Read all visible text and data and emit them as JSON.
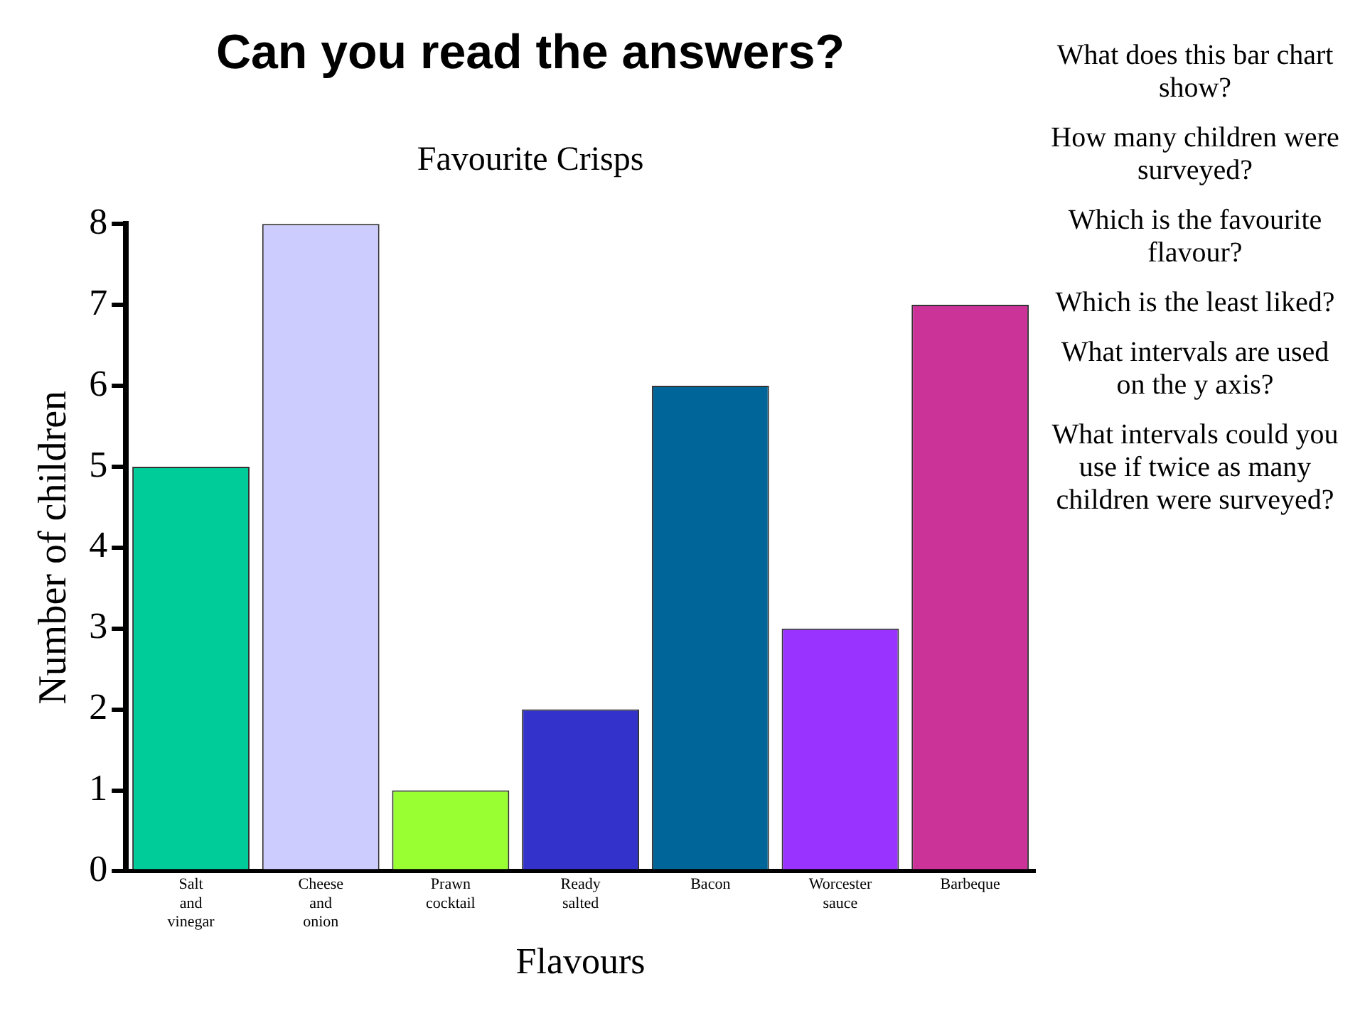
{
  "chart_data": {
    "type": "bar",
    "title": "Can you read the answers?",
    "subtitle": "Favourite Crisps",
    "xlabel": "Flavours",
    "ylabel": "Number of children",
    "categories": [
      "Salt and vinegar",
      "Cheese and onion",
      "Prawn cocktail",
      "Ready salted",
      "Bacon",
      "Worcester sauce",
      "Barbeque"
    ],
    "values": [
      5,
      8,
      1,
      2,
      6,
      3,
      7
    ],
    "colors": [
      "#00cc99",
      "#ccccff",
      "#99ff33",
      "#3333cc",
      "#006699",
      "#9933ff",
      "#cc3399"
    ],
    "ylim": [
      0,
      8
    ],
    "yticks": [
      0,
      1,
      2,
      3,
      4,
      5,
      6,
      7,
      8
    ],
    "grid": false,
    "legend": false,
    "annotations": [
      "What does this bar chart show?",
      "How many children were surveyed?",
      "Which is the favourite flavour?",
      "Which is the least liked?",
      "What intervals are used on the y axis?",
      "What intervals could you use if twice as many children were surveyed?"
    ]
  }
}
